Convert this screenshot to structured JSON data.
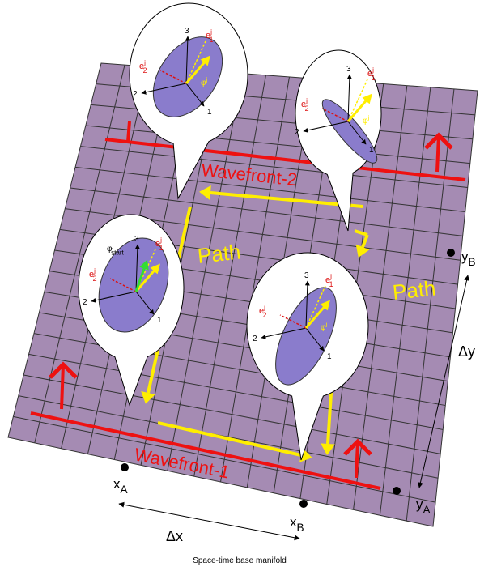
{
  "caption": "Space-time base manifold",
  "wavefronts": [
    "Wavefront-2",
    "Wavefront-1"
  ],
  "paths": [
    "Path",
    "Path"
  ],
  "points": [
    {
      "base": "x",
      "sub": "A"
    },
    {
      "base": "x",
      "sub": "B"
    },
    {
      "base": "y",
      "sub": "A"
    },
    {
      "base": "y",
      "sub": "B"
    }
  ],
  "deltas": [
    "Δx",
    "Δy"
  ],
  "bubbles": [
    {
      "axes": [
        "3",
        "2",
        "1"
      ],
      "e1": {
        "base": "e",
        "sup": "j",
        "sub": "1"
      },
      "e2": {
        "base": "e",
        "sup": "j",
        "sub": "2"
      },
      "phase": {
        "base": "φ",
        "sup": "j"
      }
    },
    {
      "axes": [
        "3",
        "2",
        "1"
      ],
      "e1": {
        "base": "e",
        "sup": "j",
        "sub": "1"
      },
      "e2": {
        "base": "e",
        "sup": "j",
        "sub": "2"
      },
      "phase": {
        "base": "φ",
        "sup": "j"
      }
    },
    {
      "axes": [
        "3",
        "2",
        "1"
      ],
      "e1": {
        "base": "e",
        "sup": "j",
        "sub": "1"
      },
      "e2": {
        "base": "e",
        "sup": "j",
        "sub": "2"
      },
      "start": {
        "base": "φ",
        "sup": "j",
        "sub": "start"
      }
    },
    {
      "axes": [
        "3",
        "2",
        "1"
      ],
      "e1": {
        "base": "e",
        "sup": "j",
        "sub": "1"
      },
      "e2": {
        "base": "e",
        "sup": "j",
        "sub": "2"
      },
      "phase": {
        "base": "φ",
        "sup": "j"
      }
    }
  ]
}
